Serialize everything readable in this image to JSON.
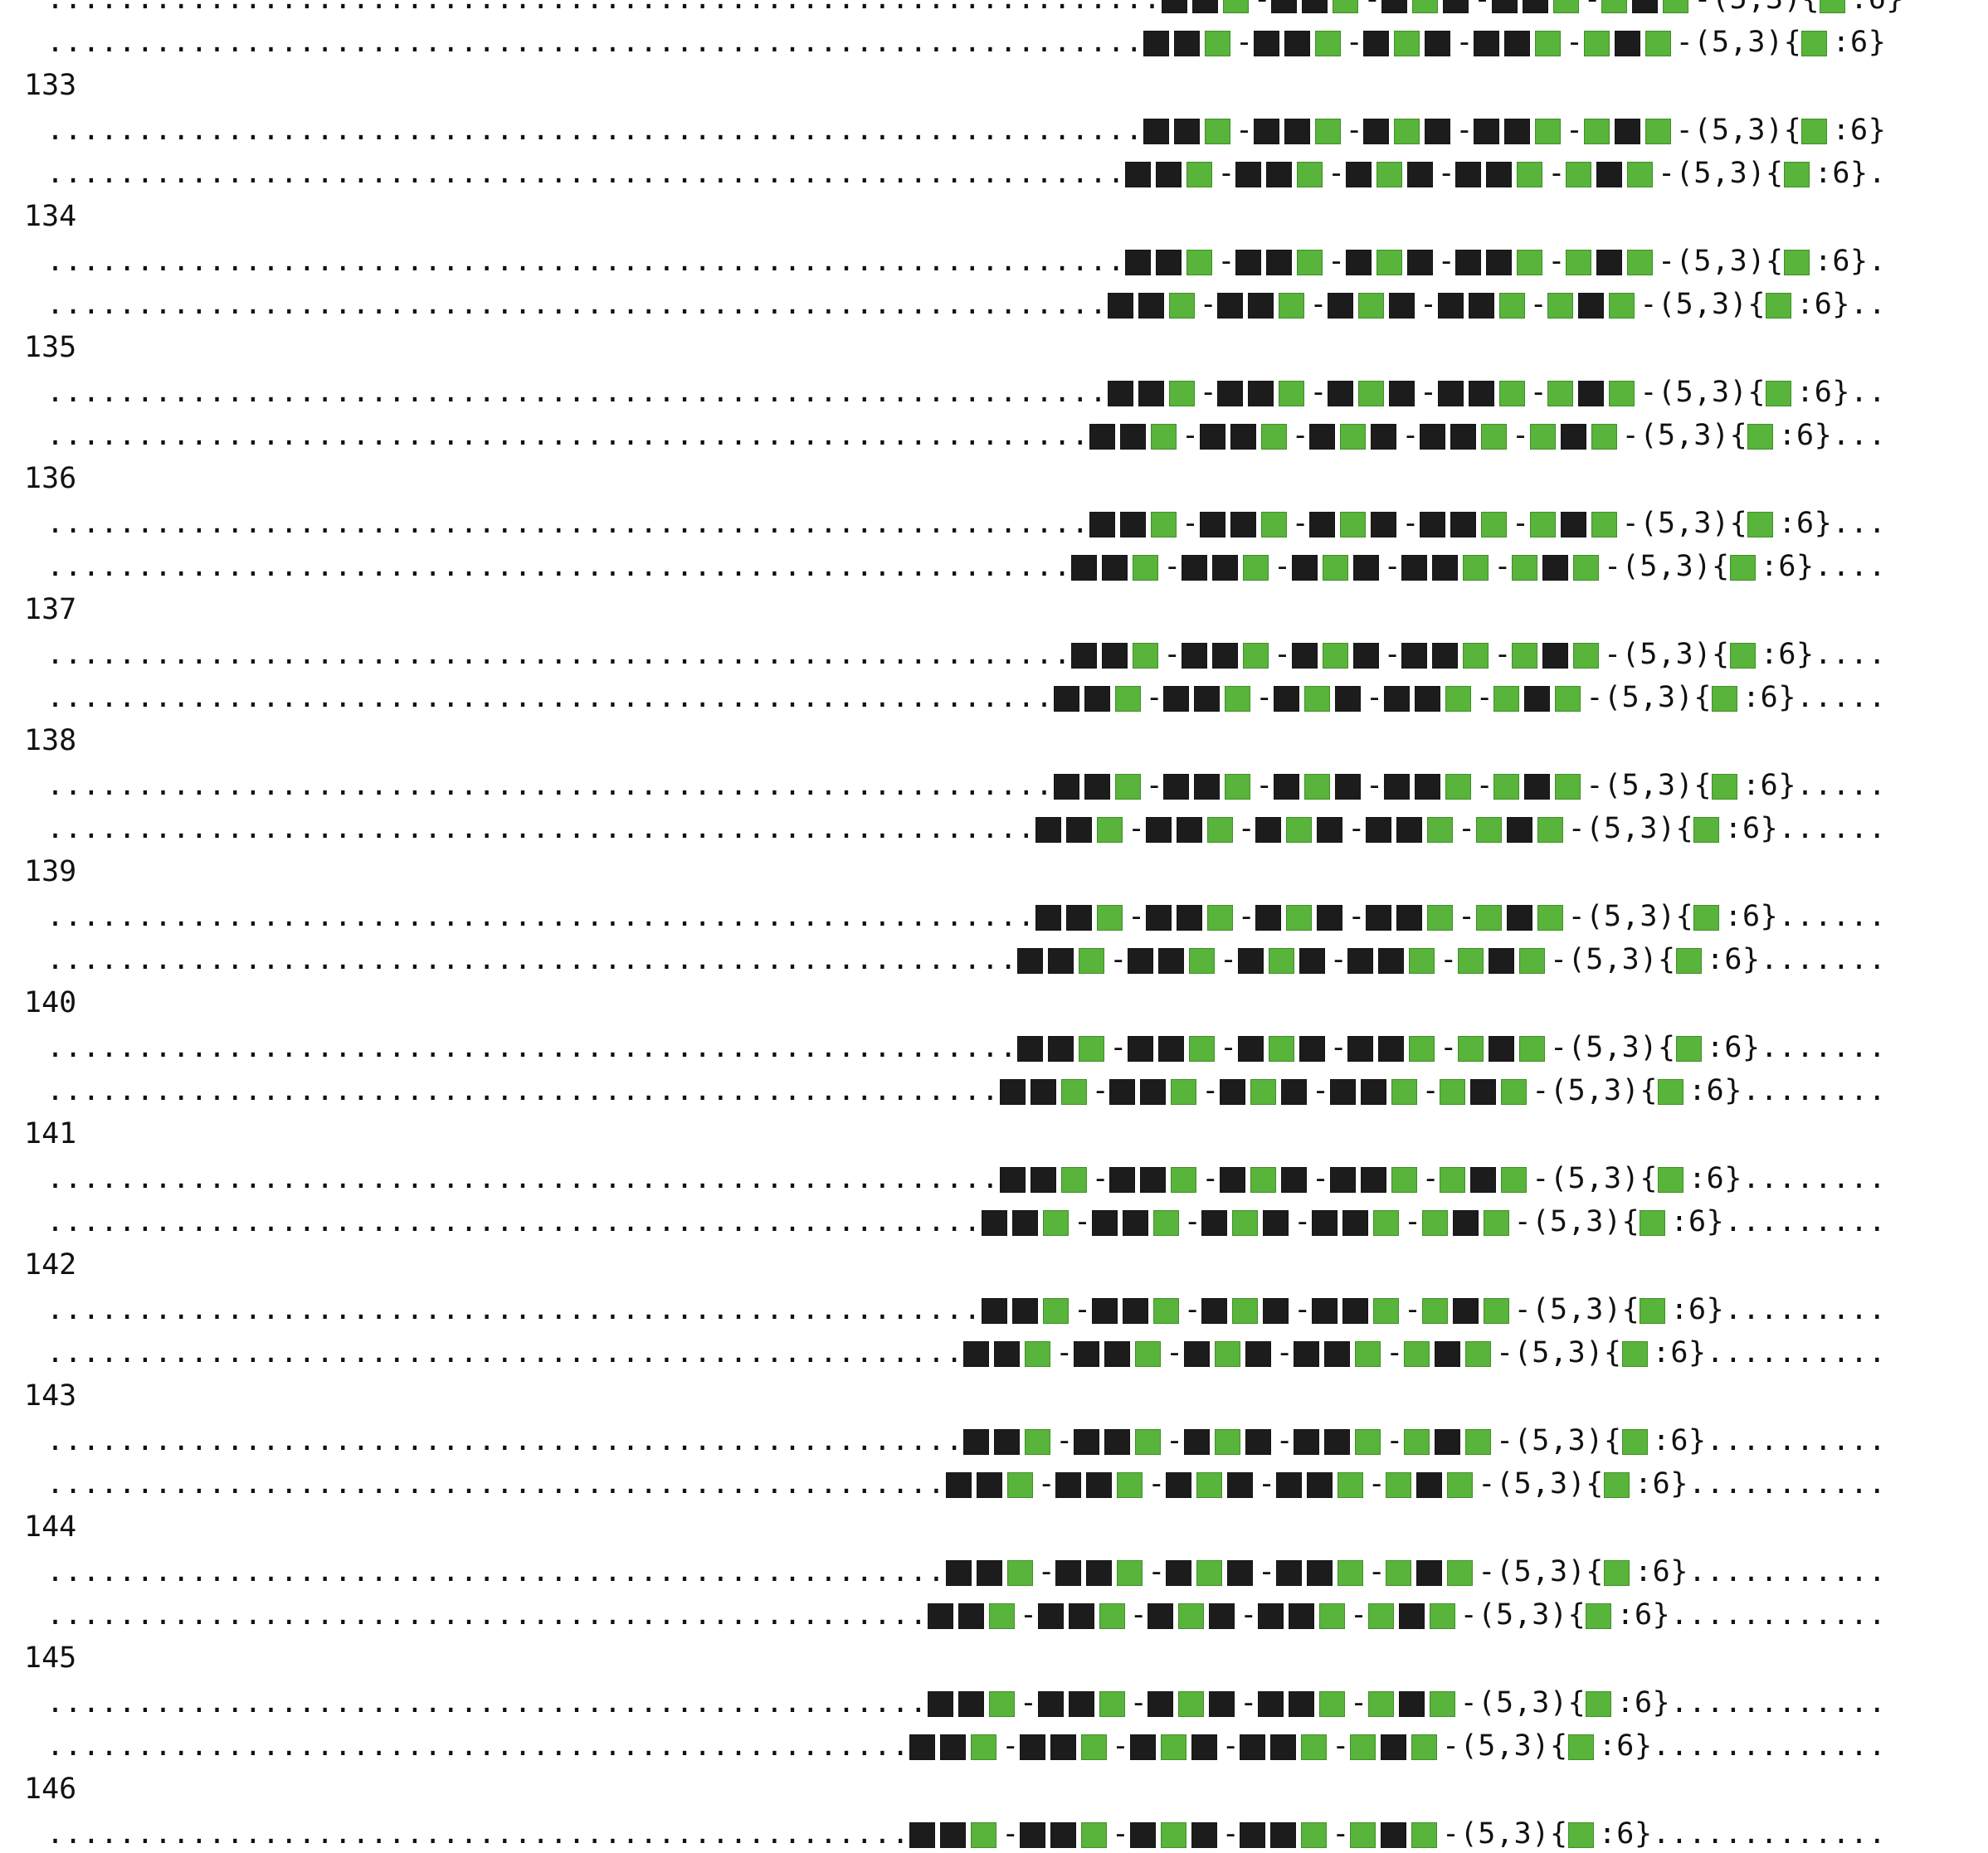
{
  "colors": {
    "dark_cell": "#1c1c1c",
    "green_cell": "#58b43a",
    "text": "#111111",
    "background": "#ffffff"
  },
  "pattern": {
    "blocks": [
      [
        "dark-cell",
        "dark-cell",
        "green-cell"
      ],
      [
        "dark-cell",
        "dark-cell",
        "green-cell"
      ],
      [
        "dark-cell",
        "green-cell",
        "dark-cell"
      ],
      [
        "dark-cell",
        "dark-cell",
        "green-cell"
      ],
      [
        "green-cell",
        "dark-cell",
        "green-cell"
      ]
    ],
    "separator": "-",
    "rule_prefix": "-(5,3){",
    "rule_cell": "green-cell",
    "rule_suffix": ":6}"
  },
  "rows": [
    {
      "generation": "",
      "lines": [
        {
          "lead": 62,
          "trail": ""
        },
        {
          "lead": 61,
          "trail": ""
        }
      ]
    },
    {
      "generation": "133",
      "lines": [
        {
          "lead": 61,
          "trail": ""
        },
        {
          "lead": 60,
          "trail": "."
        }
      ]
    },
    {
      "generation": "134",
      "lines": [
        {
          "lead": 60,
          "trail": "."
        },
        {
          "lead": 59,
          "trail": ".."
        }
      ]
    },
    {
      "generation": "135",
      "lines": [
        {
          "lead": 59,
          "trail": ".."
        },
        {
          "lead": 58,
          "trail": "..."
        }
      ]
    },
    {
      "generation": "136",
      "lines": [
        {
          "lead": 58,
          "trail": "..."
        },
        {
          "lead": 57,
          "trail": "...."
        }
      ]
    },
    {
      "generation": "137",
      "lines": [
        {
          "lead": 57,
          "trail": "...."
        },
        {
          "lead": 56,
          "trail": "....."
        }
      ]
    },
    {
      "generation": "138",
      "lines": [
        {
          "lead": 56,
          "trail": "....."
        },
        {
          "lead": 55,
          "trail": "......"
        }
      ]
    },
    {
      "generation": "139",
      "lines": [
        {
          "lead": 55,
          "trail": "......"
        },
        {
          "lead": 54,
          "trail": "......."
        }
      ]
    },
    {
      "generation": "140",
      "lines": [
        {
          "lead": 54,
          "trail": "......."
        },
        {
          "lead": 53,
          "trail": "........"
        }
      ]
    },
    {
      "generation": "141",
      "lines": [
        {
          "lead": 53,
          "trail": "........"
        },
        {
          "lead": 52,
          "trail": "........."
        }
      ]
    },
    {
      "generation": "142",
      "lines": [
        {
          "lead": 52,
          "trail": "........."
        },
        {
          "lead": 51,
          "trail": ".........."
        }
      ]
    },
    {
      "generation": "143",
      "lines": [
        {
          "lead": 51,
          "trail": ".........."
        },
        {
          "lead": 50,
          "trail": "..........."
        }
      ]
    },
    {
      "generation": "144",
      "lines": [
        {
          "lead": 50,
          "trail": "..........."
        },
        {
          "lead": 49,
          "trail": "............"
        }
      ]
    },
    {
      "generation": "145",
      "lines": [
        {
          "lead": 49,
          "trail": "............"
        },
        {
          "lead": 48,
          "trail": "............."
        }
      ]
    },
    {
      "generation": "146",
      "lines": [
        {
          "lead": 48,
          "trail": "............."
        }
      ]
    }
  ]
}
